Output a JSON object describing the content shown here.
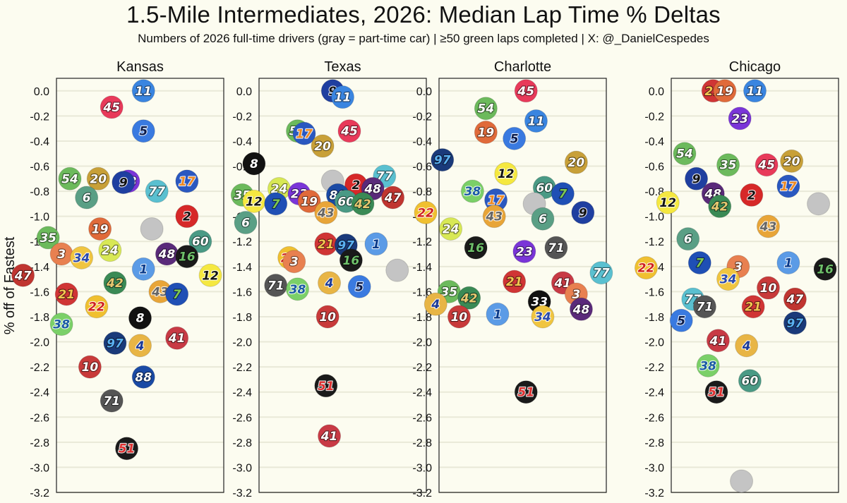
{
  "title": "1.5-Mile Intermediates, 2026: Median Lap Time % Deltas",
  "subtitle": "Numbers of 2026 full-time drivers (gray = part-time car) | ≥50 green laps completed | X: @_DanielCespedes",
  "chart_data": {
    "type": "scatter",
    "ylabel": "% off of Fastest",
    "ylim": [
      -3.2,
      0.1
    ],
    "yticks": [
      "0.0",
      "-0.2",
      "-0.4",
      "-0.6",
      "-0.8",
      "-1.0",
      "-1.2",
      "-1.4",
      "-1.6",
      "-1.8",
      "-2.0",
      "-2.2",
      "-2.4",
      "-2.6",
      "-2.8",
      "-3.0",
      "-3.2"
    ],
    "grid": true,
    "panels": [
      {
        "name": "Kansas",
        "points": [
          {
            "num": "11",
            "x": 0.52,
            "y": 0.0
          },
          {
            "num": "45",
            "x": 0.33,
            "y": -0.13
          },
          {
            "num": "5",
            "x": 0.52,
            "y": -0.32
          },
          {
            "num": "54",
            "x": 0.08,
            "y": -0.7
          },
          {
            "num": "20",
            "x": 0.25,
            "y": -0.7
          },
          {
            "num": "23",
            "x": 0.43,
            "y": -0.72
          },
          {
            "num": "9",
            "x": 0.4,
            "y": -0.73
          },
          {
            "num": "17",
            "x": 0.78,
            "y": -0.72
          },
          {
            "num": "77",
            "x": 0.6,
            "y": -0.8
          },
          {
            "num": "6",
            "x": 0.18,
            "y": -0.85
          },
          {
            "num": "2",
            "x": 0.78,
            "y": -1.0
          },
          {
            "num": "19",
            "x": 0.26,
            "y": -1.1
          },
          {
            "num": "",
            "x": 0.57,
            "y": -1.1,
            "gray": true
          },
          {
            "num": "35",
            "x": -0.05,
            "y": -1.17
          },
          {
            "num": "60",
            "x": 0.86,
            "y": -1.2
          },
          {
            "num": "24",
            "x": 0.32,
            "y": -1.27
          },
          {
            "num": "3",
            "x": 0.03,
            "y": -1.3
          },
          {
            "num": "34",
            "x": 0.15,
            "y": -1.33
          },
          {
            "num": "48",
            "x": 0.66,
            "y": -1.3
          },
          {
            "num": "16",
            "x": 0.78,
            "y": -1.32
          },
          {
            "num": "1",
            "x": 0.52,
            "y": -1.42
          },
          {
            "num": "47",
            "x": -0.2,
            "y": -1.47
          },
          {
            "num": "12",
            "x": 0.92,
            "y": -1.47
          },
          {
            "num": "42",
            "x": 0.35,
            "y": -1.53
          },
          {
            "num": "43",
            "x": 0.62,
            "y": -1.6
          },
          {
            "num": "7",
            "x": 0.72,
            "y": -1.62
          },
          {
            "num": "21",
            "x": 0.06,
            "y": -1.62
          },
          {
            "num": "22",
            "x": 0.24,
            "y": -1.72
          },
          {
            "num": "8",
            "x": 0.5,
            "y": -1.81
          },
          {
            "num": "38",
            "x": 0.03,
            "y": -1.86
          },
          {
            "num": "41",
            "x": 0.72,
            "y": -1.97
          },
          {
            "num": "97",
            "x": 0.35,
            "y": -2.01
          },
          {
            "num": "4",
            "x": 0.5,
            "y": -2.03
          },
          {
            "num": "10",
            "x": 0.2,
            "y": -2.2
          },
          {
            "num": "88",
            "x": 0.52,
            "y": -2.28
          },
          {
            "num": "71",
            "x": 0.33,
            "y": -2.47
          },
          {
            "num": "51",
            "x": 0.42,
            "y": -2.85
          }
        ]
      },
      {
        "name": "Texas",
        "points": [
          {
            "num": "9",
            "x": 0.44,
            "y": 0.0
          },
          {
            "num": "11",
            "x": 0.5,
            "y": -0.05
          },
          {
            "num": "54",
            "x": 0.23,
            "y": -0.32
          },
          {
            "num": "17",
            "x": 0.27,
            "y": -0.34
          },
          {
            "num": "45",
            "x": 0.54,
            "y": -0.32
          },
          {
            "num": "20",
            "x": 0.38,
            "y": -0.44
          },
          {
            "num": "8",
            "x": -0.03,
            "y": -0.58
          },
          {
            "num": "",
            "x": 0.44,
            "y": -0.72,
            "gray": true
          },
          {
            "num": "77",
            "x": 0.75,
            "y": -0.68
          },
          {
            "num": "2",
            "x": 0.58,
            "y": -0.75
          },
          {
            "num": "48",
            "x": 0.68,
            "y": -0.78
          },
          {
            "num": "24",
            "x": 0.12,
            "y": -0.78
          },
          {
            "num": "35",
            "x": -0.1,
            "y": -0.83
          },
          {
            "num": "23",
            "x": 0.24,
            "y": -0.82
          },
          {
            "num": "88",
            "x": 0.47,
            "y": -0.83
          },
          {
            "num": "60",
            "x": 0.52,
            "y": -0.88
          },
          {
            "num": "47",
            "x": 0.8,
            "y": -0.85
          },
          {
            "num": "12",
            "x": -0.03,
            "y": -0.88
          },
          {
            "num": "7",
            "x": 0.1,
            "y": -0.9
          },
          {
            "num": "19",
            "x": 0.3,
            "y": -0.88
          },
          {
            "num": "42",
            "x": 0.62,
            "y": -0.9
          },
          {
            "num": "43",
            "x": 0.4,
            "y": -0.97
          },
          {
            "num": "6",
            "x": -0.08,
            "y": -1.05
          },
          {
            "num": "21",
            "x": 0.4,
            "y": -1.22
          },
          {
            "num": "97",
            "x": 0.52,
            "y": -1.23
          },
          {
            "num": "1",
            "x": 0.7,
            "y": -1.22
          },
          {
            "num": "22",
            "x": 0.18,
            "y": -1.33
          },
          {
            "num": "3",
            "x": 0.21,
            "y": -1.36
          },
          {
            "num": "16",
            "x": 0.55,
            "y": -1.35
          },
          {
            "num": "71",
            "x": 0.1,
            "y": -1.55
          },
          {
            "num": "38",
            "x": 0.23,
            "y": -1.58
          },
          {
            "num": "4",
            "x": 0.42,
            "y": -1.53
          },
          {
            "num": "5",
            "x": 0.6,
            "y": -1.56
          },
          {
            "num": "10",
            "x": 0.41,
            "y": -1.8
          },
          {
            "num": "51",
            "x": 0.4,
            "y": -2.35
          },
          {
            "num": "41",
            "x": 0.42,
            "y": -2.75
          }
        ]
      },
      {
        "name": "Charlotte",
        "points": [
          {
            "num": "45",
            "x": 0.52,
            "y": 0.0
          },
          {
            "num": "54",
            "x": 0.28,
            "y": -0.14
          },
          {
            "num": "11",
            "x": 0.58,
            "y": -0.24
          },
          {
            "num": "19",
            "x": 0.28,
            "y": -0.33
          },
          {
            "num": "5",
            "x": 0.45,
            "y": -0.38
          },
          {
            "num": "97",
            "x": 0.02,
            "y": -0.55
          },
          {
            "num": "20",
            "x": 0.82,
            "y": -0.57
          },
          {
            "num": "12",
            "x": 0.4,
            "y": -0.66
          },
          {
            "num": "60",
            "x": 0.63,
            "y": -0.77
          },
          {
            "num": "38",
            "x": 0.2,
            "y": -0.8
          },
          {
            "num": "7",
            "x": 0.74,
            "y": -0.82
          },
          {
            "num": "17",
            "x": 0.34,
            "y": -0.87
          },
          {
            "num": "",
            "x": 0.57,
            "y": -0.9,
            "gray": true
          },
          {
            "num": "22",
            "x": -0.08,
            "y": -0.97
          },
          {
            "num": "43",
            "x": 0.33,
            "y": -1.0
          },
          {
            "num": "9",
            "x": 0.86,
            "y": -0.97
          },
          {
            "num": "6",
            "x": 0.62,
            "y": -1.02
          },
          {
            "num": "24",
            "x": 0.07,
            "y": -1.1
          },
          {
            "num": "16",
            "x": 0.22,
            "y": -1.25
          },
          {
            "num": "23",
            "x": 0.51,
            "y": -1.28
          },
          {
            "num": "71",
            "x": 0.7,
            "y": -1.25
          },
          {
            "num": "",
            "x": -0.25,
            "y": -1.43,
            "gray": true
          },
          {
            "num": "77",
            "x": 0.97,
            "y": -1.45
          },
          {
            "num": "21",
            "x": 0.45,
            "y": -1.52
          },
          {
            "num": "41",
            "x": 0.74,
            "y": -1.53
          },
          {
            "num": "35",
            "x": 0.06,
            "y": -1.6
          },
          {
            "num": "3",
            "x": 0.82,
            "y": -1.62
          },
          {
            "num": "42",
            "x": 0.18,
            "y": -1.65
          },
          {
            "num": "4",
            "x": -0.02,
            "y": -1.7
          },
          {
            "num": "33",
            "x": 0.6,
            "y": -1.68
          },
          {
            "num": "48",
            "x": 0.85,
            "y": -1.74
          },
          {
            "num": "10",
            "x": 0.12,
            "y": -1.8
          },
          {
            "num": "1",
            "x": 0.35,
            "y": -1.78
          },
          {
            "num": "34",
            "x": 0.62,
            "y": -1.8
          },
          {
            "num": "51",
            "x": 0.52,
            "y": -2.4
          }
        ]
      },
      {
        "name": "Chicago",
        "points": [
          {
            "num": "21",
            "x": 0.25,
            "y": 0.0
          },
          {
            "num": "19",
            "x": 0.32,
            "y": 0.0
          },
          {
            "num": "11",
            "x": 0.5,
            "y": 0.0
          },
          {
            "num": "23",
            "x": 0.41,
            "y": -0.22
          },
          {
            "num": "54",
            "x": 0.08,
            "y": -0.5
          },
          {
            "num": "35",
            "x": 0.34,
            "y": -0.59
          },
          {
            "num": "45",
            "x": 0.57,
            "y": -0.59
          },
          {
            "num": "20",
            "x": 0.72,
            "y": -0.56
          },
          {
            "num": "9",
            "x": 0.15,
            "y": -0.7
          },
          {
            "num": "17",
            "x": 0.7,
            "y": -0.76
          },
          {
            "num": "48",
            "x": 0.25,
            "y": -0.82
          },
          {
            "num": "2",
            "x": 0.48,
            "y": -0.83
          },
          {
            "num": "12",
            "x": -0.02,
            "y": -0.89
          },
          {
            "num": "",
            "x": 0.88,
            "y": -0.9,
            "gray": true
          },
          {
            "num": "42",
            "x": 0.29,
            "y": -0.92
          },
          {
            "num": "43",
            "x": 0.58,
            "y": -1.08
          },
          {
            "num": "6",
            "x": 0.1,
            "y": -1.18
          },
          {
            "num": "7",
            "x": 0.17,
            "y": -1.37
          },
          {
            "num": "1",
            "x": 0.7,
            "y": -1.37
          },
          {
            "num": "3",
            "x": 0.4,
            "y": -1.4
          },
          {
            "num": "22",
            "x": -0.15,
            "y": -1.41
          },
          {
            "num": "16",
            "x": 0.92,
            "y": -1.42
          },
          {
            "num": "34",
            "x": 0.34,
            "y": -1.5
          },
          {
            "num": "10",
            "x": 0.58,
            "y": -1.57
          },
          {
            "num": "77",
            "x": 0.13,
            "y": -1.66
          },
          {
            "num": "47",
            "x": 0.74,
            "y": -1.66
          },
          {
            "num": "71",
            "x": 0.2,
            "y": -1.72
          },
          {
            "num": "21",
            "x": 0.49,
            "y": -1.72
          },
          {
            "num": "5",
            "x": 0.06,
            "y": -1.83
          },
          {
            "num": "97",
            "x": 0.74,
            "y": -1.85
          },
          {
            "num": "41",
            "x": 0.28,
            "y": -1.99
          },
          {
            "num": "4",
            "x": 0.45,
            "y": -2.03
          },
          {
            "num": "38",
            "x": 0.22,
            "y": -2.19
          },
          {
            "num": "60",
            "x": 0.47,
            "y": -2.31
          },
          {
            "num": "51",
            "x": 0.27,
            "y": -2.4
          },
          {
            "num": "",
            "x": 0.42,
            "y": -3.11,
            "gray": true
          }
        ]
      }
    ],
    "car_colors": {
      "1": [
        "#5b9be6",
        "#0a3a8a"
      ],
      "2": [
        "#d62828",
        "#111111"
      ],
      "3": [
        "#e88050",
        "#ffffff"
      ],
      "4": [
        "#e8b545",
        "#1a3a9a"
      ],
      "5": [
        "#3a7ae0",
        "#0a1a4a"
      ],
      "6": [
        "#5a9f85",
        "#ffffff"
      ],
      "7": [
        "#1f4fb5",
        "#7ec850"
      ],
      "8": [
        "#111111",
        "#ffffff"
      ],
      "9": [
        "#1f3fa0",
        "#111111"
      ],
      "10": [
        "#c83a3a",
        "#ffffff"
      ],
      "11": [
        "#3a85e0",
        "#ffffff"
      ],
      "12": [
        "#f5e840",
        "#111111"
      ],
      "16": [
        "#1a1a1a",
        "#6ec06a"
      ],
      "17": [
        "#2a58c0",
        "#f08a20"
      ],
      "19": [
        "#e06a3a",
        "#ffffff"
      ],
      "20": [
        "#c8a038",
        "#ffffff"
      ],
      "21": [
        "#d03535",
        "#f0c850"
      ],
      "22": [
        "#f0c030",
        "#d02020"
      ],
      "23": [
        "#7a35d8",
        "#ffffff"
      ],
      "24": [
        "#d8e855",
        "#ffffff"
      ],
      "33": [
        "#111111",
        "#ffffff"
      ],
      "34": [
        "#f0c540",
        "#2a4ab0"
      ],
      "35": [
        "#6cba5c",
        "#ffffff"
      ],
      "38": [
        "#7bd068",
        "#1a5aa5"
      ],
      "41": [
        "#c83a45",
        "#ffffff"
      ],
      "42": [
        "#3a8a55",
        "#e8c870"
      ],
      "43": [
        "#e8a538",
        "#666666"
      ],
      "45": [
        "#e83a5a",
        "#ffffff"
      ],
      "47": [
        "#c03530",
        "#ffffff"
      ],
      "48": [
        "#5a2a7a",
        "#ffffff"
      ],
      "51": [
        "#1a1a1a",
        "#e03030"
      ],
      "54": [
        "#6cba5c",
        "#ffffff"
      ],
      "60": [
        "#4a9a85",
        "#ffffff"
      ],
      "71": [
        "#555555",
        "#ffffff"
      ],
      "77": [
        "#5ac0d0",
        "#ffffff"
      ],
      "88": [
        "#1a4aa5",
        "#ffffff"
      ],
      "97": [
        "#1a3a7a",
        "#5ab0f0"
      ],
      "gray": [
        "#c4c4c4",
        "#c4c4c4"
      ]
    }
  }
}
